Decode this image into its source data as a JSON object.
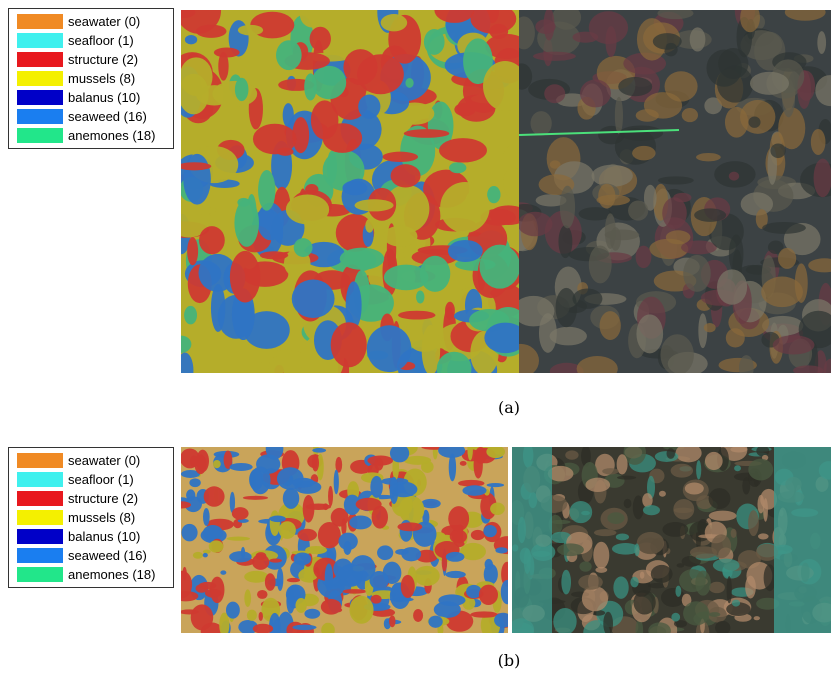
{
  "figures": [
    {
      "legend": [
        {
          "label": "seawater (0)",
          "color": "#f08a24"
        },
        {
          "label": "seafloor (1)",
          "color": "#3ff0ee"
        },
        {
          "label": "structure (2)",
          "color": "#e8181e"
        },
        {
          "label": "mussels (8)",
          "color": "#f4f000"
        },
        {
          "label": "balanus (10)",
          "color": "#0000c8"
        },
        {
          "label": "seaweed (16)",
          "color": "#1a7ef0"
        },
        {
          "label": "anemones (18)",
          "color": "#22e68a"
        }
      ],
      "caption": "(a)"
    },
    {
      "legend": [
        {
          "label": "seawater (0)",
          "color": "#f08a24"
        },
        {
          "label": "seafloor (1)",
          "color": "#3ff0ee"
        },
        {
          "label": "structure (2)",
          "color": "#e8181e"
        },
        {
          "label": "mussels (8)",
          "color": "#f4f000"
        },
        {
          "label": "balanus (10)",
          "color": "#0000c8"
        },
        {
          "label": "seaweed (16)",
          "color": "#1a7ef0"
        },
        {
          "label": "anemones (18)",
          "color": "#22e68a"
        }
      ],
      "caption": "(b)"
    }
  ]
}
